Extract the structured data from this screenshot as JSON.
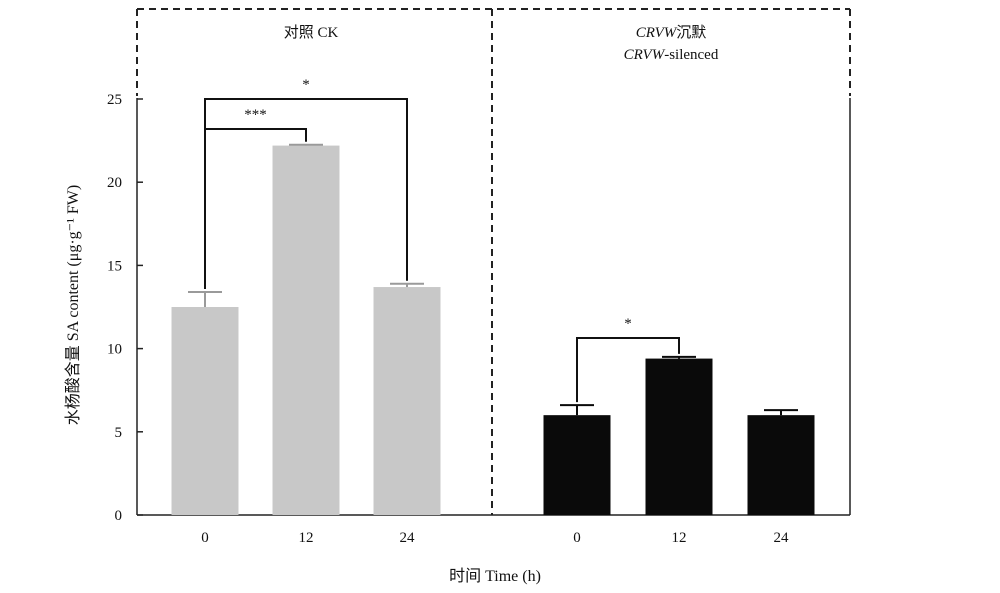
{
  "chart_data": {
    "type": "bar",
    "xlabel": "时间 Time (h)",
    "ylabel": "水杨酸含量 SA content (μg·g⁻¹ FW)",
    "ylim": [
      0,
      25
    ],
    "yticks": [
      "0",
      "5",
      "10",
      "15",
      "20",
      "25"
    ],
    "panels": [
      {
        "label": "对照 CK",
        "label_line2": "",
        "color": "#c8c8c8",
        "error_color": "#9a9a9a",
        "categories": [
          "0",
          "12",
          "24"
        ],
        "values": [
          12.5,
          22.2,
          13.7
        ],
        "errors": [
          0.9,
          0.05,
          0.2
        ],
        "significance": [
          {
            "from": 0,
            "to": 1,
            "label": "***"
          },
          {
            "from": 0,
            "to": 2,
            "label": "*"
          }
        ]
      },
      {
        "label_italic": "CRVW",
        "label": "沉默",
        "label_line2_italic": "CRVW",
        "label_line2": "-silenced",
        "color": "#0a0a0a",
        "error_color": "#0a0a0a",
        "categories": [
          "0",
          "12",
          "24"
        ],
        "values": [
          6.0,
          9.4,
          6.0
        ],
        "errors": [
          0.6,
          0.1,
          0.3
        ],
        "significance": [
          {
            "from": 0,
            "to": 1,
            "label": "*"
          }
        ]
      }
    ]
  }
}
